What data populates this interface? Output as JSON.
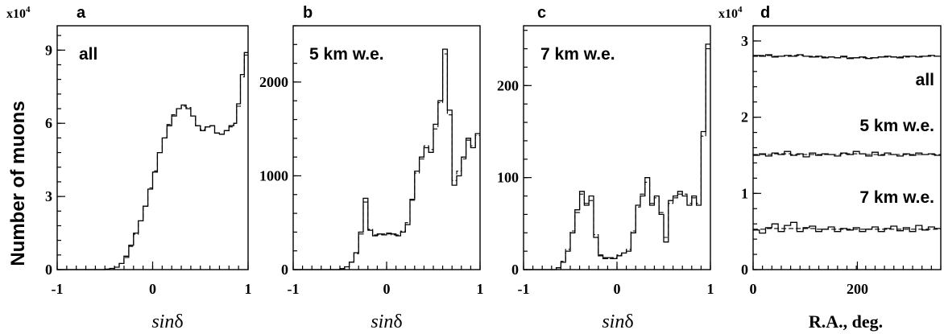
{
  "figure": {
    "ylabel": "Number of muons"
  },
  "chart_data": [
    {
      "panel": "a",
      "type": "histogram-step",
      "annotation": "all",
      "xlabel": "sinδ",
      "xlabel_italic": "sin",
      "xlabel_symbol": "δ",
      "multiplier_base": "x10",
      "multiplier_exp": "4",
      "xlim": [
        -1,
        1
      ],
      "ylim": [
        0,
        10
      ],
      "xticks": [
        -1,
        0,
        1
      ],
      "xtick_labels": [
        "-1",
        "0",
        "1"
      ],
      "yticks": [
        0,
        3,
        6,
        9
      ],
      "ytick_labels": [
        "0",
        "3",
        "6",
        "9"
      ],
      "series": [
        {
          "style": "solid",
          "x": [
            -1,
            -0.6,
            -0.5,
            -0.45,
            -0.4,
            -0.35,
            -0.3,
            -0.25,
            -0.2,
            -0.15,
            -0.1,
            -0.05,
            0,
            0.05,
            0.1,
            0.15,
            0.2,
            0.25,
            0.3,
            0.35,
            0.4,
            0.45,
            0.5,
            0.55,
            0.6,
            0.65,
            0.7,
            0.75,
            0.8,
            0.85,
            0.88,
            0.92,
            0.96,
            1
          ],
          "y": [
            0,
            0,
            0.02,
            0.05,
            0.1,
            0.25,
            0.55,
            1.0,
            1.5,
            2.0,
            2.6,
            3.3,
            4.0,
            4.8,
            5.4,
            5.9,
            6.3,
            6.6,
            6.75,
            6.6,
            6.3,
            5.9,
            5.7,
            5.85,
            5.9,
            5.6,
            5.55,
            5.7,
            5.9,
            6.0,
            6.8,
            8.0,
            8.9,
            8.9
          ]
        },
        {
          "style": "dashed",
          "x": [
            -1,
            -0.6,
            -0.5,
            -0.45,
            -0.4,
            -0.35,
            -0.3,
            -0.25,
            -0.2,
            -0.15,
            -0.1,
            -0.05,
            0,
            0.05,
            0.1,
            0.15,
            0.2,
            0.25,
            0.3,
            0.35,
            0.4,
            0.45,
            0.5,
            0.55,
            0.6,
            0.65,
            0.7,
            0.75,
            0.8,
            0.85,
            0.88,
            0.92,
            0.96,
            1
          ],
          "y": [
            0,
            0,
            0.02,
            0.05,
            0.1,
            0.25,
            0.5,
            0.95,
            1.45,
            2.0,
            2.6,
            3.35,
            4.05,
            4.8,
            5.4,
            5.95,
            6.35,
            6.6,
            6.7,
            6.65,
            6.3,
            5.9,
            5.75,
            5.85,
            5.9,
            5.6,
            5.55,
            5.7,
            5.85,
            6.0,
            6.7,
            7.9,
            8.8,
            8.8
          ]
        }
      ]
    },
    {
      "panel": "b",
      "type": "histogram-step",
      "annotation": "5 km w.e.",
      "xlabel": "sinδ",
      "xlabel_italic": "sin",
      "xlabel_symbol": "δ",
      "xlim": [
        -1,
        1
      ],
      "ylim": [
        0,
        2600
      ],
      "xticks": [
        -1,
        0,
        1
      ],
      "xtick_labels": [
        "-1",
        "0",
        "1"
      ],
      "yticks": [
        0,
        1000,
        2000
      ],
      "ytick_labels": [
        "0",
        "1000",
        "2000"
      ],
      "series": [
        {
          "style": "solid",
          "x": [
            -1,
            -0.6,
            -0.5,
            -0.45,
            -0.4,
            -0.35,
            -0.3,
            -0.25,
            -0.2,
            -0.15,
            -0.1,
            -0.05,
            0,
            0.05,
            0.1,
            0.15,
            0.2,
            0.25,
            0.3,
            0.35,
            0.4,
            0.45,
            0.5,
            0.55,
            0.6,
            0.65,
            0.7,
            0.75,
            0.8,
            0.85,
            0.9,
            0.95,
            1
          ],
          "y": [
            0,
            0,
            10,
            30,
            80,
            180,
            400,
            760,
            420,
            360,
            380,
            370,
            390,
            380,
            360,
            400,
            480,
            750,
            1050,
            1200,
            1300,
            1250,
            1550,
            1800,
            2350,
            1700,
            900,
            1000,
            1200,
            1400,
            1300,
            1450,
            1450
          ]
        },
        {
          "style": "dashed",
          "x": [
            -1,
            -0.6,
            -0.5,
            -0.45,
            -0.4,
            -0.35,
            -0.3,
            -0.25,
            -0.2,
            -0.15,
            -0.1,
            -0.05,
            0,
            0.05,
            0.1,
            0.15,
            0.2,
            0.25,
            0.3,
            0.35,
            0.4,
            0.45,
            0.5,
            0.55,
            0.6,
            0.65,
            0.7,
            0.75,
            0.8,
            0.85,
            0.9,
            0.95,
            1
          ],
          "y": [
            0,
            0,
            10,
            30,
            80,
            170,
            380,
            720,
            430,
            370,
            370,
            380,
            380,
            370,
            370,
            410,
            500,
            740,
            1030,
            1180,
            1320,
            1280,
            1500,
            1780,
            2300,
            1650,
            950,
            1050,
            1180,
            1380,
            1320,
            1430,
            1430
          ]
        }
      ]
    },
    {
      "panel": "c",
      "type": "histogram-step",
      "annotation": "7 km w.e.",
      "xlabel": "sinδ",
      "xlabel_italic": "sin",
      "xlabel_symbol": "δ",
      "xlim": [
        -1,
        1
      ],
      "ylim": [
        0,
        265
      ],
      "xticks": [
        -1,
        0,
        1
      ],
      "xtick_labels": [
        "-1",
        "0",
        "1"
      ],
      "yticks": [
        0,
        100,
        200
      ],
      "ytick_labels": [
        "0",
        "100",
        "200"
      ],
      "series": [
        {
          "style": "solid",
          "x": [
            -1,
            -0.7,
            -0.65,
            -0.6,
            -0.55,
            -0.5,
            -0.45,
            -0.4,
            -0.35,
            -0.3,
            -0.25,
            -0.2,
            -0.15,
            -0.1,
            -0.05,
            0,
            0.05,
            0.1,
            0.15,
            0.2,
            0.25,
            0.3,
            0.35,
            0.4,
            0.45,
            0.5,
            0.55,
            0.6,
            0.65,
            0.7,
            0.75,
            0.8,
            0.85,
            0.9,
            0.95,
            1
          ],
          "y": [
            0,
            0,
            2,
            8,
            20,
            40,
            65,
            85,
            70,
            80,
            35,
            15,
            12,
            13,
            12,
            15,
            18,
            20,
            40,
            70,
            80,
            100,
            70,
            80,
            60,
            30,
            75,
            80,
            85,
            80,
            70,
            80,
            70,
            150,
            245,
            245
          ]
        },
        {
          "style": "dashed",
          "x": [
            -1,
            -0.7,
            -0.65,
            -0.6,
            -0.55,
            -0.5,
            -0.45,
            -0.4,
            -0.35,
            -0.3,
            -0.25,
            -0.2,
            -0.15,
            -0.1,
            -0.05,
            0,
            0.05,
            0.1,
            0.15,
            0.2,
            0.25,
            0.3,
            0.35,
            0.4,
            0.45,
            0.5,
            0.55,
            0.6,
            0.65,
            0.7,
            0.75,
            0.8,
            0.85,
            0.9,
            0.95,
            1
          ],
          "y": [
            0,
            0,
            2,
            9,
            22,
            42,
            62,
            82,
            72,
            75,
            38,
            16,
            13,
            12,
            13,
            16,
            18,
            22,
            42,
            68,
            82,
            95,
            72,
            78,
            62,
            35,
            72,
            78,
            82,
            82,
            72,
            78,
            72,
            145,
            240,
            240
          ]
        }
      ]
    },
    {
      "panel": "d",
      "type": "histogram-step",
      "annotations": [
        "all",
        "5 km w.e.",
        "7 km w.e."
      ],
      "xlabel": "R.A., deg.",
      "multiplier_base": "x10",
      "multiplier_exp": "4",
      "xlim": [
        0,
        360
      ],
      "ylim": [
        0,
        3.2
      ],
      "xticks": [
        0,
        200
      ],
      "xtick_labels": [
        "0",
        "200"
      ],
      "yticks": [
        0,
        1,
        2,
        3
      ],
      "ytick_labels": [
        "0",
        "1",
        "2",
        "3"
      ],
      "series": [
        {
          "name": "all",
          "style": "solid",
          "x0": 0,
          "dx": 12,
          "y": [
            2.81,
            2.8,
            2.82,
            2.79,
            2.8,
            2.81,
            2.8,
            2.82,
            2.8,
            2.79,
            2.8,
            2.78,
            2.79,
            2.78,
            2.8,
            2.77,
            2.78,
            2.79,
            2.77,
            2.78,
            2.79,
            2.8,
            2.79,
            2.78,
            2.8,
            2.8,
            2.79,
            2.8,
            2.81,
            2.8
          ]
        },
        {
          "name": "5 km w.e.",
          "style": "solid",
          "x0": 0,
          "dx": 12,
          "y": [
            1.5,
            1.52,
            1.49,
            1.53,
            1.51,
            1.55,
            1.5,
            1.52,
            1.48,
            1.53,
            1.5,
            1.52,
            1.51,
            1.49,
            1.53,
            1.51,
            1.55,
            1.52,
            1.49,
            1.54,
            1.5,
            1.53,
            1.51,
            1.49,
            1.52,
            1.5,
            1.53,
            1.51,
            1.52,
            1.5
          ]
        },
        {
          "name": "7 km w.e.",
          "style": "solid",
          "x0": 0,
          "dx": 12,
          "y": [
            0.52,
            0.48,
            0.55,
            0.6,
            0.5,
            0.58,
            0.62,
            0.5,
            0.55,
            0.57,
            0.5,
            0.53,
            0.56,
            0.5,
            0.54,
            0.52,
            0.55,
            0.5,
            0.53,
            0.56,
            0.5,
            0.54,
            0.57,
            0.51,
            0.55,
            0.5,
            0.58,
            0.52,
            0.56,
            0.54
          ]
        },
        {
          "name": "all",
          "style": "dashed",
          "x0": 0,
          "dx": 12,
          "y": [
            2.8,
            2.81,
            2.81,
            2.8,
            2.8,
            2.8,
            2.81,
            2.81,
            2.8,
            2.8,
            2.79,
            2.79,
            2.79,
            2.78,
            2.79,
            2.78,
            2.78,
            2.78,
            2.78,
            2.78,
            2.79,
            2.79,
            2.79,
            2.79,
            2.79,
            2.8,
            2.8,
            2.8,
            2.8,
            2.8
          ]
        },
        {
          "name": "5 km w.e.",
          "style": "dashed",
          "x0": 0,
          "dx": 12,
          "y": [
            1.51,
            1.51,
            1.51,
            1.52,
            1.52,
            1.52,
            1.51,
            1.51,
            1.51,
            1.51,
            1.51,
            1.51,
            1.51,
            1.51,
            1.52,
            1.52,
            1.52,
            1.52,
            1.51,
            1.51,
            1.51,
            1.51,
            1.51,
            1.51,
            1.51,
            1.51,
            1.51,
            1.51,
            1.51,
            1.51
          ]
        },
        {
          "name": "7 km w.e.",
          "style": "dashed",
          "x0": 0,
          "dx": 12,
          "y": [
            0.53,
            0.53,
            0.54,
            0.54,
            0.54,
            0.54,
            0.54,
            0.54,
            0.54,
            0.54,
            0.53,
            0.53,
            0.53,
            0.53,
            0.53,
            0.53,
            0.53,
            0.53,
            0.53,
            0.53,
            0.53,
            0.53,
            0.53,
            0.53,
            0.53,
            0.53,
            0.53,
            0.53,
            0.53,
            0.53
          ]
        }
      ]
    }
  ]
}
